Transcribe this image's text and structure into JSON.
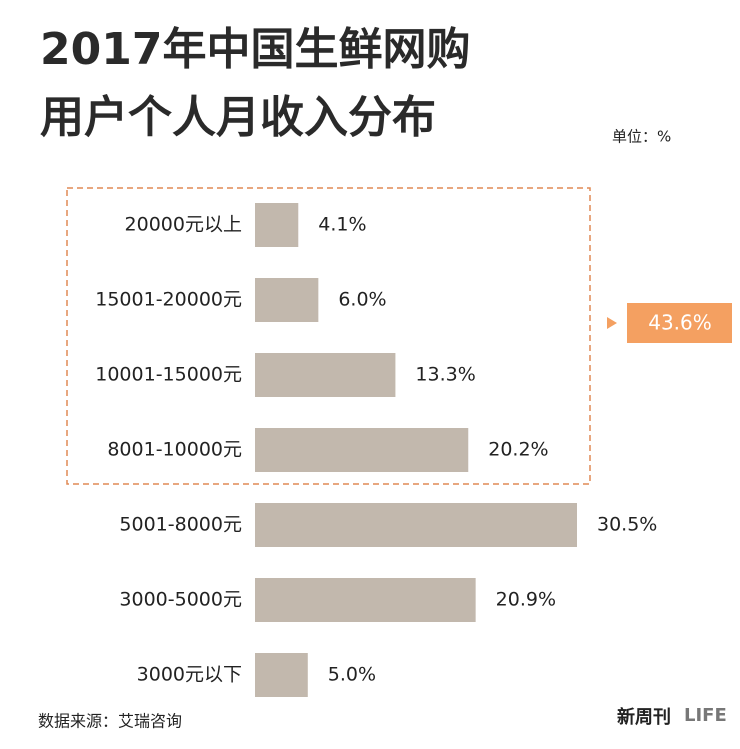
{
  "chart_data": {
    "type": "hbar",
    "title_lines": [
      "2017年中国生鲜网购",
      "用户个人月收入分布"
    ],
    "unit": "单位：%",
    "categories": [
      "20000元以上",
      "15001-20000元",
      "10001-15000元",
      "8001-10000元",
      "5001-8000元",
      "3000-5000元",
      "3000元以下"
    ],
    "values": [
      4.1,
      6.0,
      13.3,
      20.2,
      30.5,
      20.9,
      5.0
    ],
    "value_labels": [
      "4.1%",
      "6.0%",
      "13.3%",
      "20.2%",
      "30.5%",
      "20.9%",
      "5.0%"
    ],
    "color": "#c2b8ad",
    "annotation": "43.6%",
    "annotation_color": "#f4a061",
    "source": "数据来源：艾瑞咨询",
    "logos": [
      "新周刊",
      "LIFE"
    ]
  }
}
